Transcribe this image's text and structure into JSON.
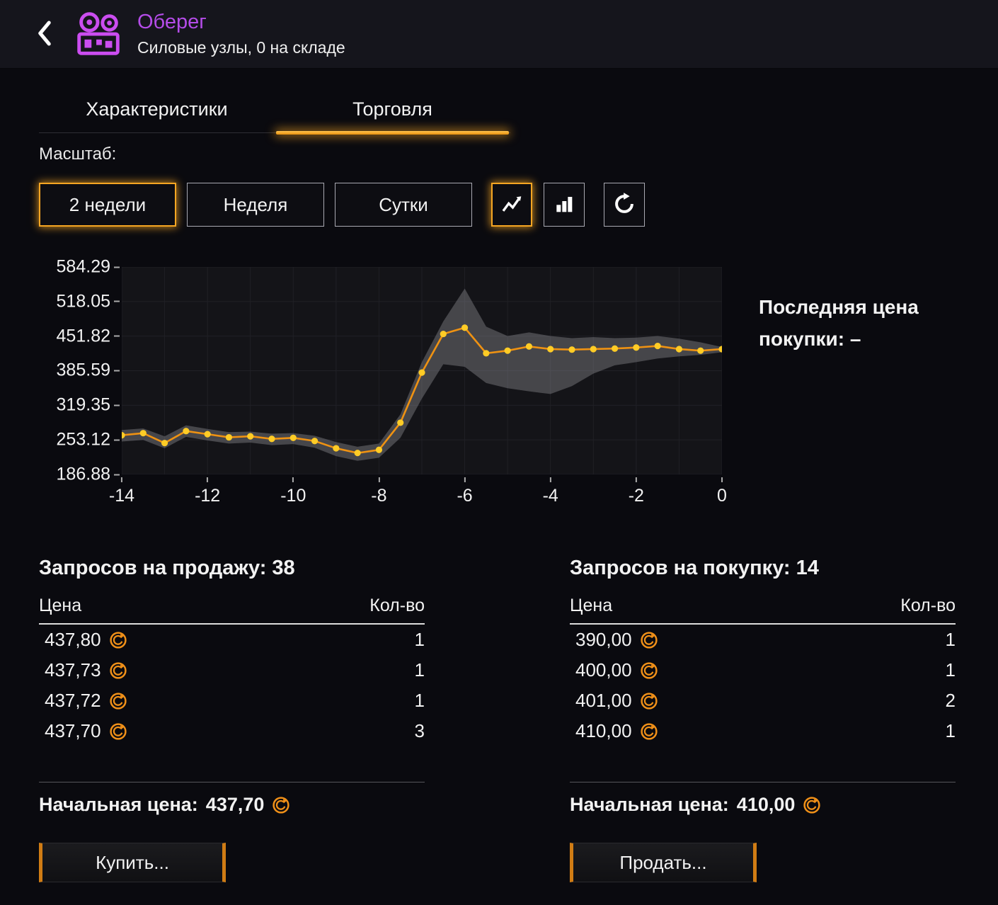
{
  "colors": {
    "accent": "#f6a623",
    "title_purple": "#b44ce8",
    "coin_orange": "#f09018"
  },
  "header": {
    "title": "Оберег",
    "subtitle": "Силовые узлы, 0 на складе"
  },
  "tabs": {
    "characteristics": "Характеристики",
    "trading": "Торговля"
  },
  "scale": {
    "label": "Масштаб:",
    "two_weeks": "2 недели",
    "week": "Неделя",
    "day": "Сутки"
  },
  "last_price_note": "Последняя цена покупки: –",
  "chart_data": {
    "type": "line",
    "title": "",
    "xlabel": "",
    "ylabel": "",
    "legend": "off",
    "grid": "on",
    "xlim": [
      -14,
      0
    ],
    "ylim": [
      186.88,
      584.29
    ],
    "yticks": [
      584.29,
      518.05,
      451.82,
      385.59,
      319.35,
      253.12,
      186.88
    ],
    "xticks": [
      -14,
      -12,
      -10,
      -8,
      -6,
      -4,
      -2,
      0
    ],
    "x": [
      -14,
      -13.5,
      -13,
      -12.5,
      -12,
      -11.5,
      -11,
      -10.5,
      -10,
      -9.5,
      -9,
      -8.5,
      -8,
      -7.5,
      -7,
      -6.5,
      -6,
      -5.5,
      -5,
      -4.5,
      -4,
      -3.5,
      -3,
      -2.5,
      -2,
      -1.5,
      -1,
      -0.5,
      0
    ],
    "series": [
      {
        "name": "price",
        "values": [
          262,
          266,
          247,
          270,
          264,
          258,
          260,
          255,
          257,
          251,
          237,
          228,
          234,
          286,
          382,
          456,
          468,
          419,
          424,
          432,
          427,
          426,
          427,
          428,
          430,
          433,
          427,
          424,
          427
        ]
      }
    ],
    "band": {
      "upper": [
        272,
        275,
        260,
        281,
        274,
        268,
        269,
        265,
        266,
        261,
        249,
        240,
        246,
        302,
        402,
        480,
        543,
        470,
        452,
        459,
        452,
        448,
        450,
        448,
        449,
        452,
        447,
        440,
        431
      ],
      "lower": [
        250,
        253,
        237,
        259,
        252,
        246,
        248,
        243,
        245,
        238,
        222,
        213,
        219,
        257,
        332,
        398,
        393,
        362,
        352,
        346,
        341,
        356,
        380,
        396,
        402,
        409,
        413,
        416,
        421
      ]
    },
    "line_color": "#ef9212",
    "dot_color": "#ffcc26",
    "band_color": "#8c8c92",
    "plot_bg": "#141418"
  },
  "sell_panel": {
    "title": "Запросов на продажу: 38",
    "price_header": "Цена",
    "qty_header": "Кол-во",
    "rows": [
      {
        "price": "437,80",
        "qty": "1"
      },
      {
        "price": "437,73",
        "qty": "1"
      },
      {
        "price": "437,72",
        "qty": "1"
      },
      {
        "price": "437,70",
        "qty": "3"
      }
    ],
    "start_label": "Начальная цена:",
    "start_price": "437,70",
    "action": "Купить..."
  },
  "buy_panel": {
    "title": "Запросов на покупку: 14",
    "price_header": "Цена",
    "qty_header": "Кол-во",
    "rows": [
      {
        "price": "390,00",
        "qty": "1"
      },
      {
        "price": "400,00",
        "qty": "1"
      },
      {
        "price": "401,00",
        "qty": "2"
      },
      {
        "price": "410,00",
        "qty": "1"
      }
    ],
    "start_label": "Начальная цена:",
    "start_price": "410,00",
    "action": "Продать..."
  }
}
